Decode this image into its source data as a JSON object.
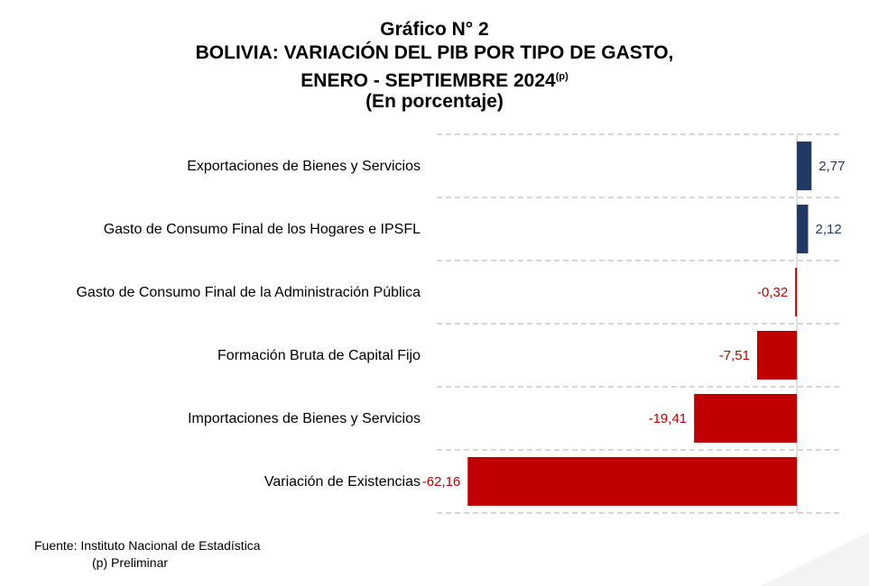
{
  "header": {
    "line1": "Gráfico N° 2",
    "line2": "BOLIVIA: VARIACIÓN DEL PIB POR TIPO DE GASTO,",
    "line3": "ENERO - SEPTIEMBRE 2024",
    "line3_sup": "(p)",
    "line4": "(En porcentaje)"
  },
  "chart_data": {
    "type": "bar",
    "orientation": "horizontal",
    "title": "BOLIVIA: VARIACIÓN DEL PIB POR TIPO DE GASTO, ENERO - SEPTIEMBRE 2024(p)",
    "categories": [
      "Exportaciones de Bienes y Servicios",
      "Gasto de Consumo Final de los Hogares e  IPSFL",
      "Gasto de Consumo Final de la Administración Pública",
      "Formación Bruta de Capital Fijo",
      "Importaciones de Bienes y Servicios",
      "Variación de Existencias"
    ],
    "values": [
      2.77,
      2.12,
      -0.32,
      -7.51,
      -19.41,
      -62.16
    ],
    "value_labels": [
      "2,77",
      "2,12",
      "-0,32",
      "-7,51",
      "-19,41",
      "-62,16"
    ],
    "xlim": [
      -68,
      8
    ],
    "positive_color": "#1f3864",
    "negative_color": "#c00000",
    "grid": true
  },
  "footer": {
    "source": "Fuente: Instituto Nacional de Estadística",
    "note": "(p) Preliminar"
  }
}
